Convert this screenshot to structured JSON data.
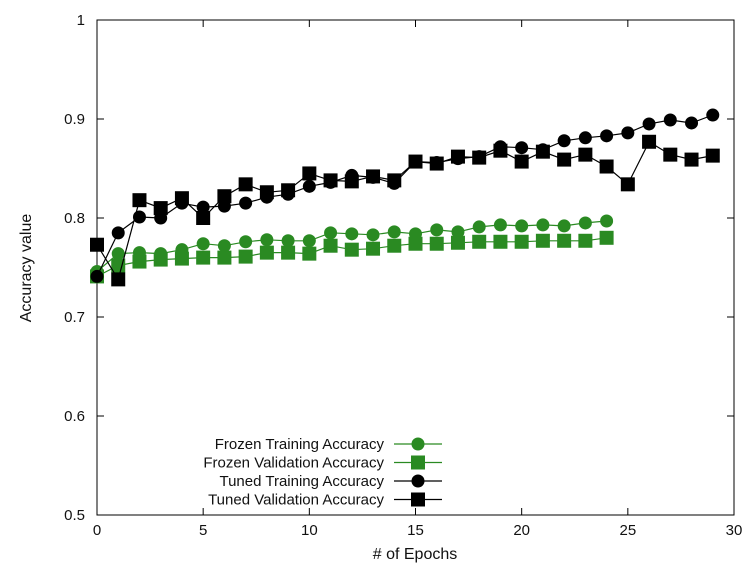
{
  "chart_data": {
    "type": "line",
    "title": "",
    "xlabel": "# of Epochs",
    "ylabel": "Accuracy value",
    "xlim": [
      0,
      30
    ],
    "ylim": [
      0.5,
      1.0
    ],
    "xticks": [
      "0",
      "5",
      "10",
      "15",
      "20",
      "25",
      "30"
    ],
    "yticks": [
      "0.5",
      "0.6",
      "0.7",
      "0.8",
      "0.9",
      "1"
    ],
    "grid": false,
    "legend_position": "bottom-left",
    "series": [
      {
        "name": "Frozen Training Accuracy",
        "color": "#2a8a22",
        "marker": "circle",
        "x": [
          0,
          1,
          2,
          3,
          4,
          5,
          6,
          7,
          8,
          9,
          10,
          11,
          12,
          13,
          14,
          15,
          16,
          17,
          18,
          19,
          20,
          21,
          22,
          23,
          24
        ],
        "y": [
          0.746,
          0.764,
          0.765,
          0.764,
          0.768,
          0.774,
          0.772,
          0.776,
          0.778,
          0.777,
          0.777,
          0.785,
          0.784,
          0.783,
          0.786,
          0.784,
          0.788,
          0.786,
          0.791,
          0.793,
          0.792,
          0.793,
          0.792,
          0.795,
          0.797
        ]
      },
      {
        "name": "Frozen Validation Accuracy",
        "color": "#2a8a22",
        "marker": "square",
        "x": [
          0,
          1,
          2,
          3,
          4,
          5,
          6,
          7,
          8,
          9,
          10,
          11,
          12,
          13,
          14,
          15,
          16,
          17,
          18,
          19,
          20,
          21,
          22,
          23,
          24
        ],
        "y": [
          0.741,
          0.752,
          0.756,
          0.758,
          0.759,
          0.76,
          0.76,
          0.761,
          0.765,
          0.765,
          0.764,
          0.772,
          0.768,
          0.769,
          0.772,
          0.774,
          0.774,
          0.775,
          0.776,
          0.776,
          0.776,
          0.777,
          0.777,
          0.777,
          0.78
        ]
      },
      {
        "name": "Tuned Training Accuracy",
        "color": "#000000",
        "marker": "circle",
        "x": [
          0,
          1,
          2,
          3,
          4,
          5,
          6,
          7,
          8,
          9,
          10,
          11,
          12,
          13,
          14,
          15,
          16,
          17,
          18,
          19,
          20,
          21,
          22,
          23,
          24,
          25,
          26,
          27,
          28,
          29
        ],
        "y": [
          0.741,
          0.785,
          0.801,
          0.8,
          0.815,
          0.811,
          0.812,
          0.815,
          0.821,
          0.824,
          0.832,
          0.836,
          0.843,
          0.841,
          0.835,
          0.857,
          0.856,
          0.86,
          0.862,
          0.872,
          0.871,
          0.869,
          0.878,
          0.881,
          0.883,
          0.886,
          0.895,
          0.899,
          0.896,
          0.904
        ]
      },
      {
        "name": "Tuned Validation Accuracy",
        "color": "#000000",
        "marker": "square",
        "x": [
          0,
          1,
          2,
          3,
          4,
          5,
          6,
          7,
          8,
          9,
          10,
          11,
          12,
          13,
          14,
          15,
          16,
          17,
          18,
          19,
          20,
          21,
          22,
          23,
          24,
          25,
          26,
          27,
          28,
          29
        ],
        "y": [
          0.773,
          0.738,
          0.818,
          0.81,
          0.82,
          0.8,
          0.822,
          0.834,
          0.826,
          0.828,
          0.845,
          0.838,
          0.837,
          0.842,
          0.838,
          0.857,
          0.855,
          0.862,
          0.861,
          0.868,
          0.857,
          0.867,
          0.859,
          0.864,
          0.852,
          0.834,
          0.877,
          0.864,
          0.859,
          0.863
        ]
      }
    ]
  }
}
